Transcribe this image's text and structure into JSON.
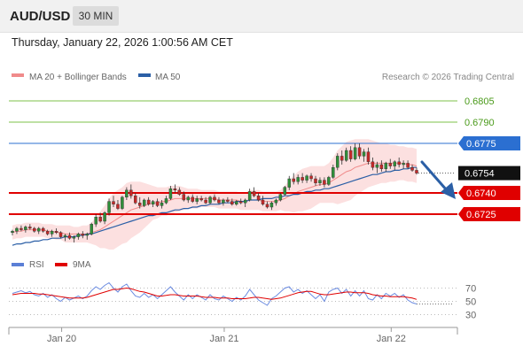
{
  "header": {
    "pair": "AUD/USD",
    "timeframe": "30 MIN"
  },
  "datetime": "Thursday, January 22, 2026 1:00:56 AM CET",
  "legend": [
    {
      "label": "MA 20 + Bollinger Bands",
      "color": "#f08b8b"
    },
    {
      "label": "MA 50",
      "color": "#2b5fa6"
    }
  ],
  "credit": "Research © 2026 Trading Central",
  "colors": {
    "bullish": "#2f8f3a",
    "bearish": "#c62828",
    "resistance_green": "#7cc24a",
    "key_blue": "#2b6fd1",
    "support_red": "#e00000",
    "arrow": "#2b5fa6"
  },
  "levels": [
    {
      "value": 0.6805,
      "label": "0.6805",
      "kind": "green"
    },
    {
      "value": 0.679,
      "label": "0.6790",
      "kind": "green"
    },
    {
      "value": 0.6775,
      "label": "0.6775",
      "kind": "blue"
    },
    {
      "value": 0.6754,
      "label": "0.6754",
      "kind": "current"
    },
    {
      "value": 0.674,
      "label": "0.6740",
      "kind": "red"
    },
    {
      "value": 0.6725,
      "label": "0.6725",
      "kind": "red"
    }
  ],
  "rsi_legend": [
    {
      "label": "RSI",
      "color": "#5b7fd6"
    },
    {
      "label": "9MA",
      "color": "#e00000"
    }
  ],
  "chart_data": {
    "type": "candlestick",
    "price_range": [
      0.67,
      0.6815
    ],
    "candles": [
      [
        0.6712,
        0.6714,
        0.671,
        0.6713
      ],
      [
        0.6713,
        0.6716,
        0.6711,
        0.6715
      ],
      [
        0.6715,
        0.6717,
        0.6713,
        0.6714
      ],
      [
        0.6714,
        0.6717,
        0.6712,
        0.6716
      ],
      [
        0.6716,
        0.6718,
        0.6714,
        0.6715
      ],
      [
        0.6715,
        0.6716,
        0.6712,
        0.6713
      ],
      [
        0.6713,
        0.6716,
        0.6711,
        0.6715
      ],
      [
        0.6715,
        0.6716,
        0.6712,
        0.6713
      ],
      [
        0.6713,
        0.6714,
        0.671,
        0.6711
      ],
      [
        0.6711,
        0.6714,
        0.6709,
        0.6713
      ],
      [
        0.6713,
        0.6715,
        0.6711,
        0.6712
      ],
      [
        0.6712,
        0.6713,
        0.6708,
        0.6709
      ],
      [
        0.6709,
        0.6711,
        0.6706,
        0.671
      ],
      [
        0.671,
        0.6712,
        0.6707,
        0.6708
      ],
      [
        0.6708,
        0.671,
        0.6705,
        0.6709
      ],
      [
        0.6709,
        0.6712,
        0.6707,
        0.6711
      ],
      [
        0.6711,
        0.6713,
        0.6708,
        0.671
      ],
      [
        0.671,
        0.6712,
        0.6707,
        0.6711
      ],
      [
        0.6711,
        0.6719,
        0.671,
        0.6718
      ],
      [
        0.6718,
        0.6725,
        0.6716,
        0.6723
      ],
      [
        0.6723,
        0.6726,
        0.6719,
        0.672
      ],
      [
        0.672,
        0.6727,
        0.6718,
        0.6726
      ],
      [
        0.6726,
        0.6736,
        0.6724,
        0.6734
      ],
      [
        0.6734,
        0.6738,
        0.673,
        0.6732
      ],
      [
        0.6732,
        0.6735,
        0.6728,
        0.6729
      ],
      [
        0.6729,
        0.6738,
        0.6728,
        0.6737
      ],
      [
        0.6737,
        0.6744,
        0.6735,
        0.6742
      ],
      [
        0.6742,
        0.6746,
        0.6736,
        0.6738
      ],
      [
        0.6738,
        0.674,
        0.6732,
        0.6733
      ],
      [
        0.6733,
        0.6737,
        0.6729,
        0.6731
      ],
      [
        0.6731,
        0.6736,
        0.673,
        0.6735
      ],
      [
        0.6735,
        0.6737,
        0.6731,
        0.6732
      ],
      [
        0.6732,
        0.6735,
        0.673,
        0.6734
      ],
      [
        0.6734,
        0.6736,
        0.673,
        0.6731
      ],
      [
        0.6731,
        0.6735,
        0.6729,
        0.6733
      ],
      [
        0.6733,
        0.6738,
        0.6732,
        0.6736
      ],
      [
        0.6736,
        0.6745,
        0.6735,
        0.6743
      ],
      [
        0.6743,
        0.6746,
        0.674,
        0.6742
      ],
      [
        0.6742,
        0.6744,
        0.6738,
        0.6739
      ],
      [
        0.6739,
        0.6741,
        0.6734,
        0.6735
      ],
      [
        0.6735,
        0.6738,
        0.6733,
        0.6737
      ],
      [
        0.6737,
        0.6739,
        0.6733,
        0.6734
      ],
      [
        0.6734,
        0.6738,
        0.6732,
        0.6736
      ],
      [
        0.6736,
        0.6738,
        0.6734,
        0.6735
      ],
      [
        0.6735,
        0.6737,
        0.6732,
        0.6733
      ],
      [
        0.6733,
        0.6738,
        0.6732,
        0.6737
      ],
      [
        0.6737,
        0.6739,
        0.6734,
        0.6735
      ],
      [
        0.6735,
        0.6737,
        0.6732,
        0.6733
      ],
      [
        0.6733,
        0.6736,
        0.6731,
        0.6735
      ],
      [
        0.6735,
        0.6737,
        0.6733,
        0.6734
      ],
      [
        0.6734,
        0.6736,
        0.6731,
        0.6732
      ],
      [
        0.6732,
        0.6735,
        0.6731,
        0.6734
      ],
      [
        0.6734,
        0.6736,
        0.6732,
        0.6733
      ],
      [
        0.6733,
        0.6736,
        0.673,
        0.6735
      ],
      [
        0.6735,
        0.6743,
        0.6734,
        0.6741
      ],
      [
        0.6741,
        0.6744,
        0.6737,
        0.6738
      ],
      [
        0.6738,
        0.674,
        0.6734,
        0.6735
      ],
      [
        0.6735,
        0.6738,
        0.6731,
        0.6732
      ],
      [
        0.6732,
        0.6734,
        0.6729,
        0.673
      ],
      [
        0.673,
        0.6734,
        0.6728,
        0.6733
      ],
      [
        0.6733,
        0.6736,
        0.6731,
        0.6735
      ],
      [
        0.6735,
        0.674,
        0.6734,
        0.6739
      ],
      [
        0.6739,
        0.6745,
        0.6738,
        0.6744
      ],
      [
        0.6744,
        0.6752,
        0.6742,
        0.675
      ],
      [
        0.675,
        0.6754,
        0.6746,
        0.6748
      ],
      [
        0.6748,
        0.6753,
        0.6746,
        0.6751
      ],
      [
        0.6751,
        0.6754,
        0.6747,
        0.6749
      ],
      [
        0.6749,
        0.6753,
        0.6747,
        0.6752
      ],
      [
        0.6752,
        0.6754,
        0.6748,
        0.675
      ],
      [
        0.675,
        0.6752,
        0.6745,
        0.6747
      ],
      [
        0.6747,
        0.6751,
        0.6745,
        0.6749
      ],
      [
        0.6749,
        0.6751,
        0.6744,
        0.6746
      ],
      [
        0.6746,
        0.6752,
        0.6745,
        0.6751
      ],
      [
        0.6751,
        0.676,
        0.675,
        0.6758
      ],
      [
        0.6758,
        0.6768,
        0.6756,
        0.6766
      ],
      [
        0.6766,
        0.677,
        0.676,
        0.6763
      ],
      [
        0.6763,
        0.6772,
        0.6762,
        0.677
      ],
      [
        0.677,
        0.6773,
        0.6762,
        0.6764
      ],
      [
        0.6764,
        0.6775,
        0.6763,
        0.6772
      ],
      [
        0.6772,
        0.6775,
        0.6764,
        0.6766
      ],
      [
        0.6766,
        0.6771,
        0.6762,
        0.6769
      ],
      [
        0.6769,
        0.6772,
        0.676,
        0.6762
      ],
      [
        0.6762,
        0.6765,
        0.6756,
        0.6758
      ],
      [
        0.6758,
        0.6762,
        0.6754,
        0.676
      ],
      [
        0.676,
        0.6763,
        0.6755,
        0.6757
      ],
      [
        0.6757,
        0.6762,
        0.6755,
        0.6761
      ],
      [
        0.6761,
        0.6764,
        0.6757,
        0.6759
      ],
      [
        0.6759,
        0.6763,
        0.6756,
        0.6762
      ],
      [
        0.6762,
        0.6765,
        0.6758,
        0.676
      ],
      [
        0.676,
        0.6763,
        0.6757,
        0.6761
      ],
      [
        0.6761,
        0.6763,
        0.6757,
        0.6758
      ],
      [
        0.6758,
        0.676,
        0.6755,
        0.6756
      ],
      [
        0.6756,
        0.6758,
        0.6753,
        0.6754
      ]
    ],
    "ma20": [
      0.6712,
      0.6713,
      0.6713,
      0.6714,
      0.6714,
      0.6714,
      0.6714,
      0.6714,
      0.6713,
      0.6713,
      0.6712,
      0.6712,
      0.6711,
      0.6711,
      0.6711,
      0.6711,
      0.6711,
      0.6711,
      0.6712,
      0.6713,
      0.6714,
      0.6716,
      0.6718,
      0.672,
      0.6722,
      0.6724,
      0.6726,
      0.6728,
      0.6729,
      0.673,
      0.6731,
      0.6732,
      0.6733,
      0.6733,
      0.6734,
      0.6734,
      0.6735,
      0.6736,
      0.6736,
      0.6736,
      0.6736,
      0.6736,
      0.6736,
      0.6736,
      0.6736,
      0.6736,
      0.6736,
      0.6735,
      0.6735,
      0.6735,
      0.6735,
      0.6735,
      0.6734,
      0.6734,
      0.6735,
      0.6735,
      0.6735,
      0.6734,
      0.6734,
      0.6734,
      0.6734,
      0.6735,
      0.6736,
      0.6738,
      0.6739,
      0.6741,
      0.6742,
      0.6743,
      0.6744,
      0.6745,
      0.6746,
      0.6746,
      0.6747,
      0.6749,
      0.6751,
      0.6753,
      0.6755,
      0.6756,
      0.6758,
      0.6759,
      0.676,
      0.6761,
      0.6761,
      0.6761,
      0.6761,
      0.6761,
      0.6761,
      0.6761,
      0.6761,
      0.6761,
      0.676,
      0.676,
      0.6759
    ],
    "bb_upper": [
      0.6717,
      0.6718,
      0.6718,
      0.6719,
      0.6719,
      0.6719,
      0.6719,
      0.6718,
      0.6718,
      0.6718,
      0.6717,
      0.6717,
      0.6717,
      0.6717,
      0.6716,
      0.6716,
      0.6717,
      0.6717,
      0.6719,
      0.6723,
      0.6727,
      0.6731,
      0.6736,
      0.674,
      0.6742,
      0.6744,
      0.6747,
      0.6748,
      0.6748,
      0.6748,
      0.6747,
      0.6746,
      0.6745,
      0.6744,
      0.6744,
      0.6744,
      0.6745,
      0.6745,
      0.6745,
      0.6744,
      0.6743,
      0.6743,
      0.6743,
      0.6742,
      0.6742,
      0.6742,
      0.6742,
      0.6741,
      0.6741,
      0.6741,
      0.6741,
      0.6741,
      0.674,
      0.674,
      0.6742,
      0.6742,
      0.6742,
      0.6741,
      0.6741,
      0.6741,
      0.6741,
      0.6742,
      0.6745,
      0.6749,
      0.6752,
      0.6755,
      0.6757,
      0.6758,
      0.6759,
      0.6759,
      0.6759,
      0.6759,
      0.6761,
      0.6765,
      0.677,
      0.6773,
      0.6776,
      0.6777,
      0.6778,
      0.6778,
      0.6778,
      0.6778,
      0.6777,
      0.6776,
      0.6775,
      0.6775,
      0.6774,
      0.6774,
      0.6773,
      0.6773,
      0.6772,
      0.6772,
      0.6771
    ],
    "bb_lower": [
      0.6707,
      0.6708,
      0.6708,
      0.6709,
      0.6709,
      0.6709,
      0.6709,
      0.6709,
      0.6708,
      0.6708,
      0.6707,
      0.6707,
      0.6705,
      0.6705,
      0.6705,
      0.6705,
      0.6705,
      0.6705,
      0.6704,
      0.6703,
      0.6701,
      0.6701,
      0.67,
      0.67,
      0.6702,
      0.6704,
      0.6705,
      0.6708,
      0.671,
      0.6712,
      0.6715,
      0.6718,
      0.6721,
      0.6722,
      0.6724,
      0.6724,
      0.6725,
      0.6726,
      0.6727,
      0.6728,
      0.6729,
      0.6729,
      0.6729,
      0.673,
      0.673,
      0.673,
      0.673,
      0.6729,
      0.6729,
      0.6729,
      0.6729,
      0.6729,
      0.6728,
      0.6728,
      0.6728,
      0.6728,
      0.6728,
      0.6727,
      0.6727,
      0.6727,
      0.6727,
      0.6728,
      0.6727,
      0.6727,
      0.6726,
      0.6727,
      0.6727,
      0.6728,
      0.6729,
      0.6731,
      0.6733,
      0.6733,
      0.6733,
      0.6733,
      0.6732,
      0.6733,
      0.6734,
      0.6735,
      0.6738,
      0.674,
      0.6742,
      0.6744,
      0.6745,
      0.6746,
      0.6747,
      0.6747,
      0.6748,
      0.6748,
      0.6749,
      0.6749,
      0.6748,
      0.6748,
      0.6747
    ],
    "ma50": [
      0.6703,
      0.6704,
      0.6704,
      0.6705,
      0.6705,
      0.6706,
      0.6706,
      0.6707,
      0.6707,
      0.6708,
      0.6708,
      0.6708,
      0.6709,
      0.6709,
      0.6709,
      0.671,
      0.671,
      0.6711,
      0.6711,
      0.6712,
      0.6713,
      0.6714,
      0.6715,
      0.6716,
      0.6717,
      0.6718,
      0.6719,
      0.672,
      0.6721,
      0.6722,
      0.6723,
      0.6724,
      0.6724,
      0.6725,
      0.6726,
      0.6726,
      0.6727,
      0.6728,
      0.6728,
      0.6729,
      0.6729,
      0.673,
      0.673,
      0.6731,
      0.6731,
      0.6732,
      0.6732,
      0.6732,
      0.6733,
      0.6733,
      0.6733,
      0.6734,
      0.6734,
      0.6734,
      0.6735,
      0.6735,
      0.6735,
      0.6736,
      0.6736,
      0.6736,
      0.6737,
      0.6737,
      0.6738,
      0.6738,
      0.6739,
      0.6739,
      0.674,
      0.6741,
      0.6741,
      0.6742,
      0.6742,
      0.6743,
      0.6743,
      0.6744,
      0.6745,
      0.6746,
      0.6747,
      0.6748,
      0.6749,
      0.675,
      0.6751,
      0.6752,
      0.6753,
      0.6753,
      0.6754,
      0.6755,
      0.6755,
      0.6756,
      0.6756,
      0.6757,
      0.6757,
      0.6758,
      0.6758
    ],
    "rsi": {
      "range": [
        20,
        80
      ],
      "ticks": [
        70,
        50,
        30
      ],
      "rsi": [
        62,
        64,
        66,
        63,
        65,
        60,
        58,
        62,
        56,
        60,
        54,
        50,
        56,
        52,
        55,
        58,
        54,
        58,
        66,
        72,
        68,
        74,
        78,
        70,
        64,
        72,
        76,
        66,
        58,
        56,
        62,
        56,
        60,
        54,
        60,
        66,
        72,
        64,
        58,
        52,
        60,
        54,
        60,
        56,
        52,
        60,
        54,
        52,
        58,
        54,
        50,
        56,
        52,
        58,
        68,
        60,
        52,
        48,
        44,
        54,
        58,
        64,
        70,
        72,
        64,
        68,
        62,
        66,
        60,
        54,
        60,
        50,
        64,
        68,
        70,
        62,
        68,
        58,
        66,
        58,
        66,
        54,
        52,
        60,
        54,
        62,
        58,
        62,
        56,
        60,
        52,
        48,
        46
      ],
      "ma9": [
        60,
        61,
        62,
        62,
        62,
        62,
        61,
        61,
        60,
        59,
        58,
        57,
        56,
        55,
        55,
        55,
        55,
        56,
        58,
        60,
        62,
        64,
        66,
        68,
        68,
        69,
        70,
        69,
        67,
        65,
        64,
        62,
        60,
        58,
        58,
        59,
        60,
        60,
        59,
        58,
        58,
        58,
        58,
        57,
        56,
        56,
        56,
        55,
        55,
        55,
        54,
        54,
        54,
        54,
        55,
        56,
        56,
        55,
        54,
        53,
        54,
        55,
        57,
        59,
        61,
        63,
        64,
        65,
        65,
        63,
        61,
        60,
        60,
        61,
        62,
        63,
        64,
        64,
        63,
        63,
        63,
        62,
        60,
        59,
        58,
        58,
        57,
        57,
        57,
        57,
        56,
        55,
        53
      ]
    },
    "x_ticks": [
      {
        "index": 10,
        "label": "Jan 20"
      },
      {
        "index": 47,
        "label": "Jan 21"
      },
      {
        "index": 85,
        "label": "Jan 22"
      }
    ]
  }
}
